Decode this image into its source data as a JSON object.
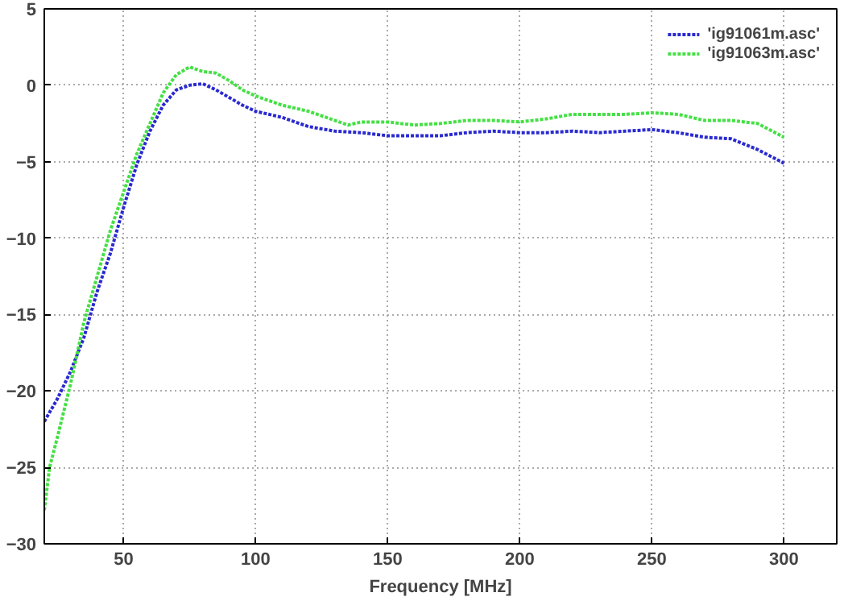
{
  "chart_data": {
    "type": "line",
    "xlabel": "Frequency [MHz]",
    "xlim": [
      20,
      320
    ],
    "xticks": [
      50,
      100,
      150,
      200,
      250,
      300
    ],
    "ylim": [
      -30,
      5
    ],
    "yticks": [
      -30,
      -25,
      -20,
      -15,
      -10,
      -5,
      0,
      5
    ],
    "grid": true,
    "legend": "top right",
    "line_style": "dotted",
    "marker": "none",
    "series": [
      {
        "name": "'ig91061m.asc'",
        "color": "#2a2ad0",
        "x": [
          20,
          25,
          30,
          35,
          40,
          45,
          50,
          55,
          60,
          65,
          70,
          75,
          80,
          85,
          90,
          95,
          100,
          110,
          120,
          130,
          140,
          150,
          160,
          170,
          180,
          190,
          200,
          210,
          220,
          230,
          240,
          250,
          260,
          270,
          280,
          290,
          300
        ],
        "values": [
          -22,
          -20.5,
          -18.7,
          -16.5,
          -13.5,
          -11,
          -8,
          -5.2,
          -3,
          -1.3,
          -0.3,
          0,
          0.1,
          -0.3,
          -0.8,
          -1.3,
          -1.7,
          -2.1,
          -2.7,
          -3,
          -3.1,
          -3.3,
          -3.3,
          -3.3,
          -3.1,
          -3,
          -3.1,
          -3.1,
          -3,
          -3.1,
          -3,
          -2.9,
          -3.1,
          -3.4,
          -3.5,
          -4.2,
          -5.1
        ]
      },
      {
        "name": "'ig91063m.asc'",
        "color": "#44e044",
        "x": [
          20,
          22,
          25,
          30,
          35,
          40,
          45,
          50,
          55,
          60,
          65,
          70,
          75,
          80,
          85,
          90,
          95,
          100,
          110,
          120,
          130,
          135,
          140,
          150,
          160,
          170,
          180,
          190,
          200,
          210,
          220,
          230,
          240,
          250,
          260,
          270,
          280,
          290,
          300
        ],
        "values": [
          -27.8,
          -25,
          -23,
          -19.5,
          -15.5,
          -12.5,
          -9.5,
          -7,
          -4.5,
          -2.5,
          -0.5,
          0.7,
          1.2,
          0.9,
          0.8,
          0.3,
          -0.3,
          -0.7,
          -1.3,
          -1.7,
          -2.3,
          -2.6,
          -2.4,
          -2.4,
          -2.6,
          -2.5,
          -2.3,
          -2.3,
          -2.4,
          -2.2,
          -1.9,
          -1.9,
          -1.9,
          -1.8,
          -1.9,
          -2.3,
          -2.3,
          -2.5,
          -3.4
        ]
      }
    ]
  }
}
